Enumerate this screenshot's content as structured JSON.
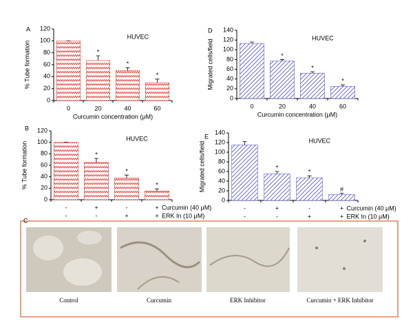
{
  "chart_data": [
    {
      "type": "bar",
      "panel": "A",
      "annotation": "HUVEC",
      "y_label": "% Tube formation",
      "x_label": "Curcumin concentration (μM)",
      "categories": [
        "0",
        "20",
        "40",
        "60"
      ],
      "values": [
        100,
        67,
        50,
        30
      ],
      "errors": [
        0,
        8,
        5,
        6
      ],
      "significance": [
        null,
        "*",
        "*",
        "*"
      ],
      "color": "#e0403a",
      "fill_pattern": "zigzag",
      "ylim": [
        0,
        120
      ],
      "yticks": [
        0,
        20,
        40,
        60,
        80,
        100,
        120
      ]
    },
    {
      "type": "bar",
      "panel": "D",
      "annotation": "HUVEC",
      "y_label": "Migrated cells/field",
      "x_label": "Curcumin concentration (μM)",
      "categories": [
        "0",
        "20",
        "40",
        "60"
      ],
      "values": [
        113,
        77,
        52,
        25
      ],
      "errors": [
        3,
        3,
        3,
        3
      ],
      "significance": [
        null,
        "*",
        "*",
        "*"
      ],
      "color": "#5a5ad0",
      "fill_pattern": "hatch",
      "ylim": [
        0,
        140
      ],
      "yticks": [
        0,
        20,
        40,
        60,
        80,
        100,
        120,
        140
      ]
    },
    {
      "type": "bar",
      "panel": "B",
      "annotation": "HUVEC",
      "y_label": "% Tube formation",
      "values": [
        100,
        65,
        38,
        15
      ],
      "errors": [
        0,
        7,
        5,
        4
      ],
      "significance": [
        null,
        "*",
        "*",
        "*"
      ],
      "treatments": [
        {
          "name": "Curcumin (40 μM)",
          "signs": [
            "-",
            "+",
            "-",
            "+"
          ]
        },
        {
          "name": "ERK In (10 μM)",
          "signs": [
            "-",
            "-",
            "+",
            "+"
          ]
        }
      ],
      "color": "#e0403a",
      "fill_pattern": "zigzag",
      "ylim": [
        0,
        120
      ],
      "yticks": [
        0,
        20,
        40,
        60,
        80,
        100,
        120
      ]
    },
    {
      "type": "bar",
      "panel": "E",
      "annotation": "HUVEC",
      "y_label": "Migrated cells/field",
      "values": [
        115,
        55,
        47,
        12
      ],
      "errors": [
        7,
        5,
        4,
        3
      ],
      "significance": [
        null,
        "*",
        "*",
        "#"
      ],
      "treatments": [
        {
          "name": "Curcumin (40 μM)",
          "signs": [
            "-",
            "+",
            "-",
            "+"
          ]
        },
        {
          "name": "ERK In (10 μM)",
          "signs": [
            "-",
            "-",
            "+",
            "+"
          ]
        }
      ],
      "color": "#5a5ad0",
      "fill_pattern": "hatch",
      "ylim": [
        0,
        140
      ],
      "yticks": [
        0,
        20,
        40,
        60,
        80,
        100,
        120,
        140
      ]
    }
  ],
  "panel_c": {
    "label": "C",
    "captions": [
      "Control",
      "Curcumin",
      "ERK Inhibitor",
      "Curcumin + ERK Inhibitor"
    ]
  }
}
